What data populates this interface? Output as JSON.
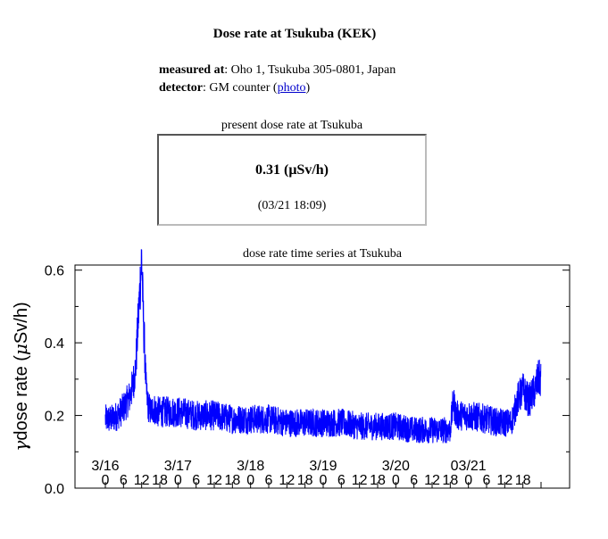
{
  "page": {
    "title": "Dose rate at Tsukuba (KEK)",
    "measured_label": "measured at",
    "measured_value": ": Oho 1, Tsukuba 305-0801, Japan",
    "detector_label": "detector",
    "detector_value": ": GM counter (",
    "detector_link": "photo",
    "detector_close": ")"
  },
  "present": {
    "caption": "present dose rate at Tsukuba",
    "value": "0.31 (μSv/h)",
    "timestamp": "(03/21 18:09)"
  },
  "chart_caption": "dose rate time series at Tsukuba",
  "chart_data": {
    "type": "line",
    "title": "",
    "ylabel": "γdose rate (μSv/h)",
    "ylabel_prefix": "γ",
    "ylabel_main": "dose rate (",
    "ylabel_mu": "μ",
    "ylabel_unit": "Sv/h)",
    "ylim": [
      0,
      0.7
    ],
    "yticks": [
      0.0,
      0.2,
      0.4,
      0.6
    ],
    "ytick_labels": [
      "0.0",
      "0.2",
      "0.4",
      "0.6"
    ],
    "day_labels": [
      "3/16",
      "3/17",
      "3/18",
      "3/19",
      "3/20",
      "03/21"
    ],
    "hour_labels": [
      "0",
      "6",
      "12",
      "18",
      "0",
      "6",
      "12",
      "18",
      "0",
      "6",
      "12",
      "18",
      "0",
      "6",
      "12",
      "18",
      "0",
      "6",
      "12",
      "18",
      "0",
      "6",
      "12",
      "18"
    ],
    "xlim_hours": [
      0,
      144
    ],
    "grid": false,
    "legend": "none",
    "series": [
      {
        "color": "#0000ff",
        "t_hours": [
          0,
          2,
          4,
          6,
          8,
          9,
          10,
          11,
          12,
          12.5,
          13,
          13.5,
          14,
          15,
          16,
          17,
          18,
          20,
          24,
          30,
          36,
          42,
          48,
          54,
          60,
          66,
          72,
          78,
          84,
          90,
          96,
          102,
          108,
          112,
          114,
          115,
          116,
          120,
          126,
          130,
          132,
          134,
          135,
          136,
          138,
          140,
          142,
          143,
          144
        ],
        "values": [
          0.19,
          0.19,
          0.2,
          0.22,
          0.25,
          0.28,
          0.33,
          0.48,
          0.64,
          0.48,
          0.38,
          0.27,
          0.23,
          0.21,
          0.22,
          0.21,
          0.21,
          0.21,
          0.21,
          0.2,
          0.2,
          0.19,
          0.19,
          0.19,
          0.18,
          0.18,
          0.18,
          0.18,
          0.17,
          0.17,
          0.17,
          0.16,
          0.16,
          0.16,
          0.16,
          0.24,
          0.2,
          0.2,
          0.19,
          0.18,
          0.18,
          0.18,
          0.2,
          0.24,
          0.27,
          0.24,
          0.27,
          0.3,
          0.3
        ]
      }
    ]
  }
}
